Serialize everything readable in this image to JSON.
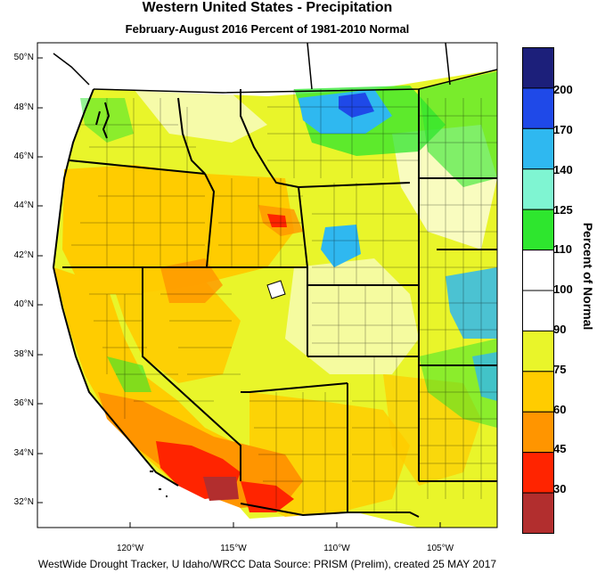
{
  "title": "Western United States - Precipitation",
  "subtitle": "February-August 2016  Percent of 1981-2010 Normal",
  "footer": "WestWide Drought Tracker, U Idaho/WRCC Data Source: PRISM (Prelim), created 25 MAY 2017",
  "latitude_ticks": [
    "50°N",
    "48°N",
    "46°N",
    "44°N",
    "42°N",
    "40°N",
    "38°N",
    "36°N",
    "34°N",
    "32°N"
  ],
  "longitude_ticks": [
    "120°W",
    "115°W",
    "110°W",
    "105°W"
  ],
  "colorbar": {
    "title": "Percent of Normal",
    "labels": [
      "200",
      "170",
      "140",
      "125",
      "110",
      "100",
      "90",
      "75",
      "60",
      "45",
      "30"
    ],
    "colors": [
      "#1c1f7a",
      "#1f49e8",
      "#2fb8f0",
      "#7ff5d2",
      "#2ee62e",
      "#ffffff",
      "#ffffff",
      "#e9f52a",
      "#ffcc00",
      "#ff9500",
      "#ff2400",
      "#b22e2e"
    ]
  },
  "map_colors": {
    "very_dry": "#b22e2e",
    "dry": "#ff2400",
    "moderately_dry": "#ff9500",
    "somewhat_dry": "#ffcc00",
    "slightly_dry": "#e9f52a",
    "normal": "#ffffff",
    "slightly_wet": "#2ee62e",
    "wet": "#7ff5d2",
    "very_wet": "#2fb8f0",
    "extremely_wet": "#1f49e8",
    "exceptionally_wet": "#1c1f7a"
  }
}
